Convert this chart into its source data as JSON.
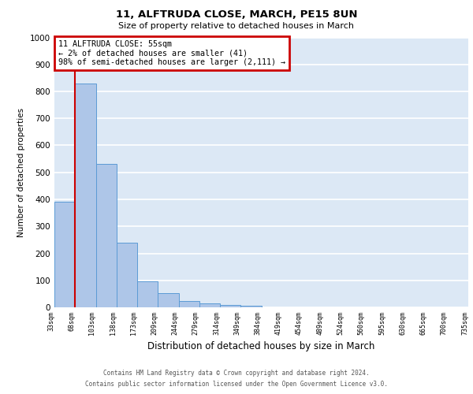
{
  "title": "11, ALFTRUDA CLOSE, MARCH, PE15 8UN",
  "subtitle": "Size of property relative to detached houses in March",
  "xlabel": "Distribution of detached houses by size in March",
  "ylabel": "Number of detached properties",
  "bin_labels": [
    "33sqm",
    "68sqm",
    "103sqm",
    "138sqm",
    "173sqm",
    "209sqm",
    "244sqm",
    "279sqm",
    "314sqm",
    "349sqm",
    "384sqm",
    "419sqm",
    "454sqm",
    "489sqm",
    "524sqm",
    "560sqm",
    "595sqm",
    "630sqm",
    "665sqm",
    "700sqm",
    "735sqm"
  ],
  "bar_values": [
    390,
    830,
    530,
    240,
    95,
    52,
    22,
    15,
    10,
    5,
    0,
    0,
    0,
    0,
    0,
    0,
    0,
    0,
    0,
    0
  ],
  "bar_color": "#aec6e8",
  "bar_edge_color": "#5b9bd5",
  "background_color": "#dce8f5",
  "grid_color": "#ffffff",
  "red_line_x": 1.0,
  "annotation_box_text": "11 ALFTRUDA CLOSE: 55sqm\n← 2% of detached houses are smaller (41)\n98% of semi-detached houses are larger (2,111) →",
  "annotation_box_color": "#ffffff",
  "annotation_box_edge_color": "#cc0000",
  "red_line_color": "#cc0000",
  "ylim": [
    0,
    1000
  ],
  "yticks": [
    0,
    100,
    200,
    300,
    400,
    500,
    600,
    700,
    800,
    900,
    1000
  ],
  "footer_line1": "Contains HM Land Registry data © Crown copyright and database right 2024.",
  "footer_line2": "Contains public sector information licensed under the Open Government Licence v3.0."
}
